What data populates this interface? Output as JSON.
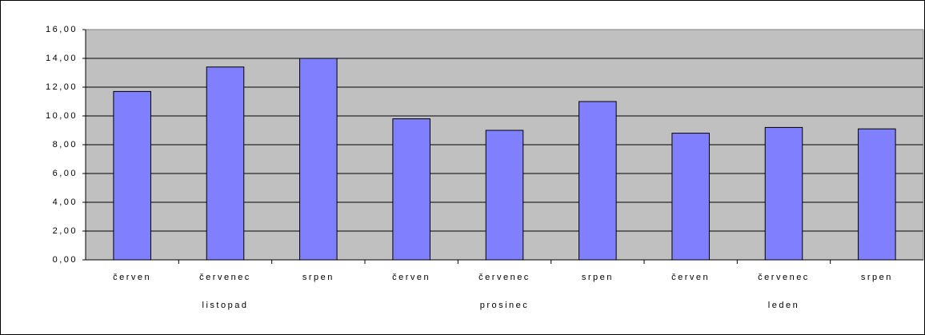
{
  "chart_data": {
    "type": "bar",
    "categories": [
      "červen",
      "červenec",
      "srpen",
      "červen",
      "červenec",
      "srpen",
      "červen",
      "červenec",
      "srpen"
    ],
    "group_labels": [
      "listopad",
      "prosinec",
      "leden"
    ],
    "values": [
      11.7,
      13.4,
      14.0,
      9.8,
      9.0,
      11.0,
      8.8,
      9.2,
      9.1
    ],
    "color": "#8080ff",
    "plot_background": "#c0c0c0",
    "ylim": [
      0,
      16
    ],
    "yticks": [
      {
        "value": 0,
        "label": "0,00"
      },
      {
        "value": 2,
        "label": "2,00"
      },
      {
        "value": 4,
        "label": "4,00"
      },
      {
        "value": 6,
        "label": "6,00"
      },
      {
        "value": 8,
        "label": "8,00"
      },
      {
        "value": 10,
        "label": "10,00"
      },
      {
        "value": 12,
        "label": "12,00"
      },
      {
        "value": 14,
        "label": "14,00"
      },
      {
        "value": 16,
        "label": "16,00"
      }
    ],
    "grid": true
  }
}
